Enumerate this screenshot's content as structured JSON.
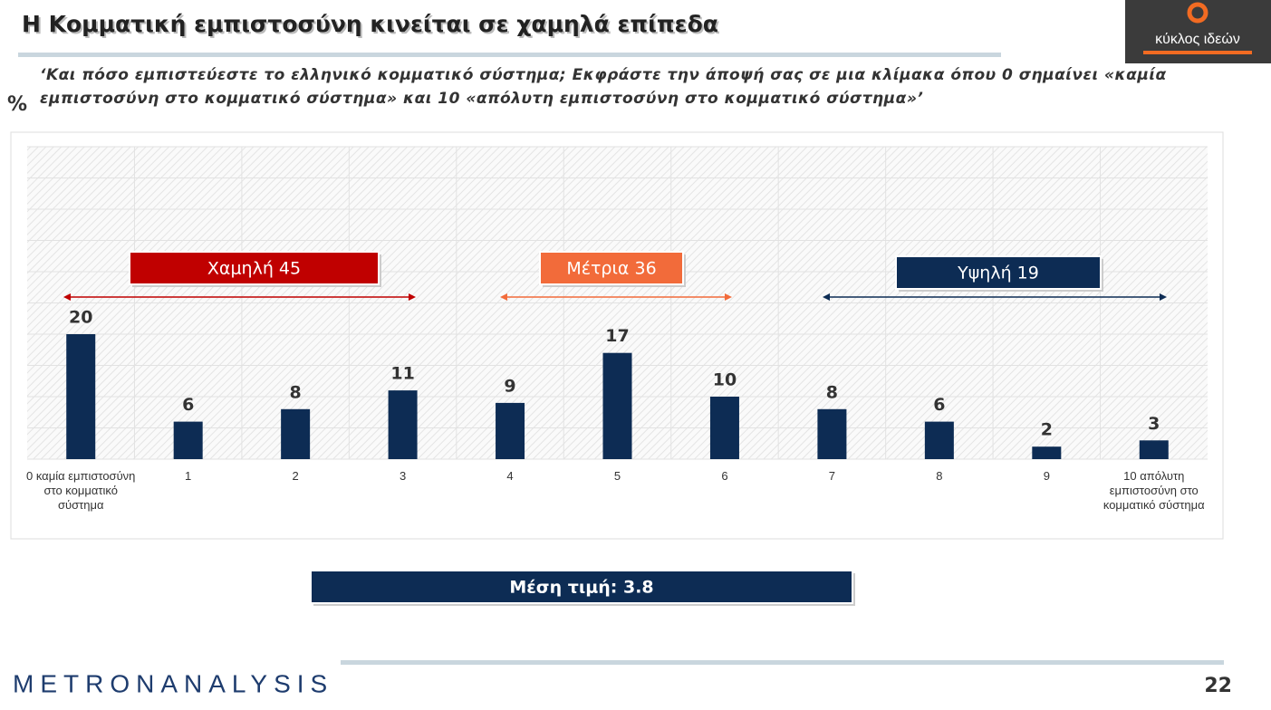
{
  "title": "Η Κομματική εμπιστοσύνη κινείται σε χαμηλά επίπεδα",
  "question": "‘Και πόσο εμπιστεύεστε το ελληνικό κομματικό σύστημα; Εκφράστε την άποψή σας σε μια κλίμακα όπου 0 σημαίνει «καμία εμπιστοσύνη στο κομματικό σύστημα» και 10 «απόλυτη εμπιστοσύνη στο κομματικό σύστημα»’",
  "unit": "%",
  "logo": "κύκλος ιδεών",
  "footer": "METRONANALYSIS",
  "page_number": "22",
  "chart_data": {
    "type": "bar",
    "categories": [
      "0 καμία εμπιστοσύνη στο κομματικό σύστημα",
      "1",
      "2",
      "3",
      "4",
      "5",
      "6",
      "7",
      "8",
      "9",
      "10 απόλυτη εμπιστοσύνη στο κομματικό σύστημα"
    ],
    "values": [
      20,
      6,
      8,
      11,
      9,
      17,
      10,
      8,
      6,
      2,
      3
    ],
    "color": "#0d2c54",
    "ylim": [
      0,
      50
    ],
    "yticks": [
      0,
      5,
      10,
      15,
      20,
      25,
      30,
      35,
      40,
      45,
      50
    ],
    "grid": true,
    "groups": [
      {
        "label": "Χαμηλή 45",
        "color": "#c00000"
      },
      {
        "label": "Μέτρια 36",
        "color": "#f26b3a"
      },
      {
        "label": "Υψηλή 19",
        "color": "#0d2c54"
      }
    ],
    "mean_label": "Μέση τιμή: 3.8"
  }
}
